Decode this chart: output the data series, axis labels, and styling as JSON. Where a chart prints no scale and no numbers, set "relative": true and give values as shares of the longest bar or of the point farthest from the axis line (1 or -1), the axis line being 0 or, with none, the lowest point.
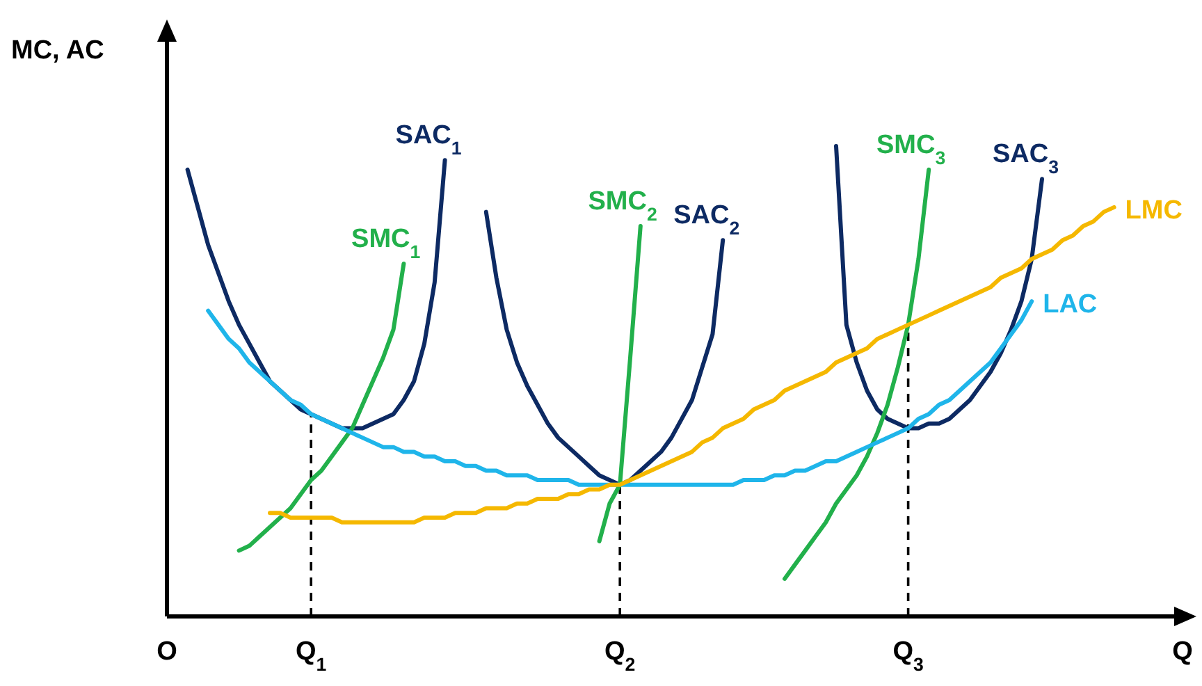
{
  "chart_data": {
    "type": "line",
    "relative": true,
    "xlabel": "Q",
    "ylabel": "MC, AC",
    "categories": [
      "O",
      null,
      null,
      null,
      null,
      null,
      null,
      null,
      null,
      null,
      null,
      null,
      null,
      null,
      "Q$_{1}$",
      null,
      null,
      null,
      null,
      null,
      null,
      null,
      null,
      null,
      null,
      null,
      null,
      null,
      null,
      null,
      null,
      null,
      null,
      null,
      null,
      null,
      null,
      null,
      null,
      null,
      null,
      null,
      null,
      null,
      "Q$_{2}$",
      null,
      null,
      null,
      null,
      null,
      null,
      null,
      null,
      null,
      null,
      null,
      null,
      null,
      null,
      null,
      null,
      null,
      null,
      null,
      null,
      null,
      null,
      null,
      null,
      null,
      null,
      null,
      "Q$_{3}$",
      null,
      null,
      null,
      null,
      null,
      null,
      null,
      null,
      null,
      null,
      null,
      null,
      null,
      null,
      null,
      null,
      null,
      null,
      null,
      null,
      null,
      null,
      null,
      null,
      null,
      null,
      null
    ],
    "ref_lines": [
      {
        "axis": "x",
        "value": "Q$_{1}$",
        "line_style": "dashed"
      },
      {
        "axis": "x",
        "value": "Q$_{2}$",
        "line_style": "dashed"
      },
      {
        "axis": "x",
        "value": "Q$_{3}$",
        "line_style": "dashed"
      }
    ],
    "series": [
      {
        "name": "SAC$_{1}$",
        "color": "#0d2a63",
        "values": [
          null,
          null,
          0.95,
          0.87,
          0.79,
          0.73,
          0.67,
          0.62,
          0.58,
          0.54,
          0.5,
          0.48,
          0.46,
          0.44,
          0.43,
          0.42,
          0.41,
          0.4,
          0.4,
          0.4,
          0.41,
          0.42,
          0.43,
          0.46,
          0.5,
          0.58,
          0.71,
          0.97,
          null,
          null,
          null,
          null,
          null,
          null,
          null,
          null,
          null,
          null,
          null,
          null,
          null,
          null,
          null,
          null,
          null,
          null,
          null,
          null,
          null,
          null,
          null,
          null,
          null,
          null,
          null,
          null,
          null,
          null,
          null,
          null,
          null,
          null,
          null,
          null,
          null,
          null,
          null,
          null,
          null,
          null,
          null,
          null,
          null,
          null,
          null,
          null,
          null,
          null,
          null,
          null,
          null,
          null,
          null,
          null,
          null,
          null,
          null,
          null,
          null,
          null,
          null,
          null,
          null,
          null,
          null,
          null,
          null,
          null,
          null,
          null
        ]
      },
      {
        "name": "SMC$_{1}$",
        "color": "#22b04b",
        "values": [
          null,
          null,
          null,
          null,
          null,
          null,
          null,
          0.14,
          0.15,
          0.17,
          0.19,
          0.21,
          0.23,
          0.26,
          0.29,
          0.31,
          0.34,
          0.37,
          0.4,
          0.45,
          0.5,
          0.55,
          0.61,
          0.75,
          null,
          null,
          null,
          null,
          null,
          null,
          null,
          null,
          null,
          null,
          null,
          null,
          null,
          null,
          null,
          null,
          null,
          null,
          null,
          null,
          null,
          null,
          null,
          null,
          null,
          null,
          null,
          null,
          null,
          null,
          null,
          null,
          null,
          null,
          null,
          null,
          null,
          null,
          null,
          null,
          null,
          null,
          null,
          null,
          null,
          null,
          null,
          null,
          null,
          null,
          null,
          null,
          null,
          null,
          null,
          null,
          null,
          null,
          null,
          null,
          null,
          null,
          null,
          null,
          null,
          null,
          null,
          null,
          null,
          null,
          null,
          null,
          null,
          null,
          null,
          null
        ]
      },
      {
        "name": "SAC$_{2}$",
        "color": "#0d2a63",
        "values": [
          null,
          null,
          null,
          null,
          null,
          null,
          null,
          null,
          null,
          null,
          null,
          null,
          null,
          null,
          null,
          null,
          null,
          null,
          null,
          null,
          null,
          null,
          null,
          null,
          null,
          null,
          null,
          null,
          null,
          null,
          null,
          0.86,
          0.72,
          0.61,
          0.54,
          0.49,
          0.45,
          0.41,
          0.38,
          0.36,
          0.34,
          0.32,
          0.3,
          0.29,
          0.28,
          0.29,
          0.31,
          0.33,
          0.35,
          0.38,
          0.42,
          0.46,
          0.53,
          0.6,
          0.8,
          null,
          null,
          null,
          null,
          null,
          null,
          null,
          null,
          null,
          null,
          null,
          null,
          null,
          null,
          null,
          null,
          null,
          null,
          null,
          null,
          null,
          null,
          null,
          null,
          null,
          null,
          null,
          null,
          null,
          null,
          null,
          null,
          null,
          null,
          null,
          null,
          null,
          null,
          null,
          null,
          null,
          null,
          null,
          null,
          null
        ]
      },
      {
        "name": "SMC$_{2}$",
        "color": "#22b04b",
        "values": [
          null,
          null,
          null,
          null,
          null,
          null,
          null,
          null,
          null,
          null,
          null,
          null,
          null,
          null,
          null,
          null,
          null,
          null,
          null,
          null,
          null,
          null,
          null,
          null,
          null,
          null,
          null,
          null,
          null,
          null,
          null,
          null,
          null,
          null,
          null,
          null,
          null,
          null,
          null,
          null,
          null,
          null,
          0.16,
          0.24,
          0.28,
          0.55,
          0.83,
          null,
          null,
          null,
          null,
          null,
          null,
          null,
          null,
          null,
          null,
          null,
          null,
          null,
          null,
          null,
          null,
          null,
          null,
          null,
          null,
          null,
          null,
          null,
          null,
          null,
          null,
          null,
          null,
          null,
          null,
          null,
          null,
          null,
          null,
          null,
          null,
          null,
          null,
          null,
          null,
          null,
          null,
          null,
          null,
          null,
          null,
          null,
          null,
          null,
          null,
          null,
          null,
          null
        ]
      },
      {
        "name": "SAC$_{3}$",
        "color": "#0d2a63",
        "values": [
          null,
          null,
          null,
          null,
          null,
          null,
          null,
          null,
          null,
          null,
          null,
          null,
          null,
          null,
          null,
          null,
          null,
          null,
          null,
          null,
          null,
          null,
          null,
          null,
          null,
          null,
          null,
          null,
          null,
          null,
          null,
          null,
          null,
          null,
          null,
          null,
          null,
          null,
          null,
          null,
          null,
          null,
          null,
          null,
          null,
          null,
          null,
          null,
          null,
          null,
          null,
          null,
          null,
          null,
          null,
          null,
          null,
          null,
          null,
          null,
          null,
          null,
          null,
          null,
          null,
          1.0,
          0.62,
          0.54,
          0.48,
          0.44,
          0.42,
          0.41,
          0.4,
          0.4,
          0.41,
          0.41,
          0.42,
          0.44,
          0.46,
          0.49,
          0.52,
          0.56,
          0.61,
          0.67,
          0.76,
          0.93,
          null,
          null,
          null,
          null,
          null,
          null,
          null,
          null,
          null,
          null,
          null,
          null,
          null,
          null
        ]
      },
      {
        "name": "SMC$_{3}$",
        "color": "#22b04b",
        "values": [
          null,
          null,
          null,
          null,
          null,
          null,
          null,
          null,
          null,
          null,
          null,
          null,
          null,
          null,
          null,
          null,
          null,
          null,
          null,
          null,
          null,
          null,
          null,
          null,
          null,
          null,
          null,
          null,
          null,
          null,
          null,
          null,
          null,
          null,
          null,
          null,
          null,
          null,
          null,
          null,
          null,
          null,
          null,
          null,
          null,
          null,
          null,
          null,
          null,
          null,
          null,
          null,
          null,
          null,
          null,
          null,
          null,
          null,
          null,
          null,
          0.08,
          0.11,
          0.14,
          0.17,
          0.2,
          0.24,
          0.27,
          0.3,
          0.34,
          0.39,
          0.45,
          0.53,
          0.62,
          0.76,
          0.95,
          null,
          null,
          null,
          null,
          null,
          null,
          null,
          null,
          null,
          null,
          null,
          null,
          null,
          null,
          null,
          null,
          null,
          null,
          null,
          null,
          null,
          null,
          null,
          null,
          null
        ]
      },
      {
        "name": "LAC",
        "color": "#1fb5ea",
        "values": [
          null,
          null,
          null,
          null,
          0.65,
          0.62,
          0.59,
          0.57,
          0.54,
          0.52,
          0.5,
          0.48,
          0.46,
          0.45,
          0.43,
          0.42,
          0.41,
          0.4,
          0.39,
          0.38,
          0.37,
          0.36,
          0.36,
          0.35,
          0.35,
          0.34,
          0.34,
          0.33,
          0.33,
          0.32,
          0.32,
          0.31,
          0.31,
          0.3,
          0.3,
          0.3,
          0.29,
          0.29,
          0.29,
          0.29,
          0.28,
          0.28,
          0.28,
          0.28,
          0.28,
          0.28,
          0.28,
          0.28,
          0.28,
          0.28,
          0.28,
          0.28,
          0.28,
          0.28,
          0.28,
          0.28,
          0.29,
          0.29,
          0.29,
          0.3,
          0.3,
          0.31,
          0.31,
          0.32,
          0.33,
          0.33,
          0.34,
          0.35,
          0.36,
          0.37,
          0.38,
          0.39,
          0.4,
          0.42,
          0.43,
          0.45,
          0.46,
          0.48,
          0.5,
          0.52,
          0.54,
          0.57,
          0.6,
          0.63,
          0.67,
          null,
          null,
          null,
          null,
          null,
          null,
          null,
          null,
          null,
          null,
          null,
          null,
          null,
          null,
          null
        ]
      },
      {
        "name": "LMC",
        "color": "#f5b800",
        "values": [
          null,
          null,
          null,
          null,
          null,
          null,
          null,
          null,
          null,
          null,
          0.22,
          0.22,
          0.21,
          0.21,
          0.21,
          0.21,
          0.21,
          0.2,
          0.2,
          0.2,
          0.2,
          0.2,
          0.2,
          0.2,
          0.2,
          0.21,
          0.21,
          0.21,
          0.22,
          0.22,
          0.22,
          0.23,
          0.23,
          0.23,
          0.24,
          0.24,
          0.25,
          0.25,
          0.25,
          0.26,
          0.26,
          0.27,
          0.27,
          0.28,
          0.28,
          0.29,
          0.3,
          0.31,
          0.32,
          0.33,
          0.34,
          0.35,
          0.37,
          0.38,
          0.4,
          0.41,
          0.42,
          0.44,
          0.45,
          0.46,
          0.48,
          0.49,
          0.5,
          0.51,
          0.52,
          0.54,
          0.55,
          0.56,
          0.57,
          0.59,
          0.6,
          0.61,
          0.62,
          0.63,
          0.64,
          0.65,
          0.66,
          0.67,
          0.68,
          0.69,
          0.7,
          0.72,
          0.73,
          0.74,
          0.76,
          0.77,
          0.78,
          0.8,
          0.81,
          0.83,
          0.84,
          0.86,
          0.87,
          null,
          null,
          null,
          null,
          null,
          null,
          null
        ]
      }
    ]
  }
}
